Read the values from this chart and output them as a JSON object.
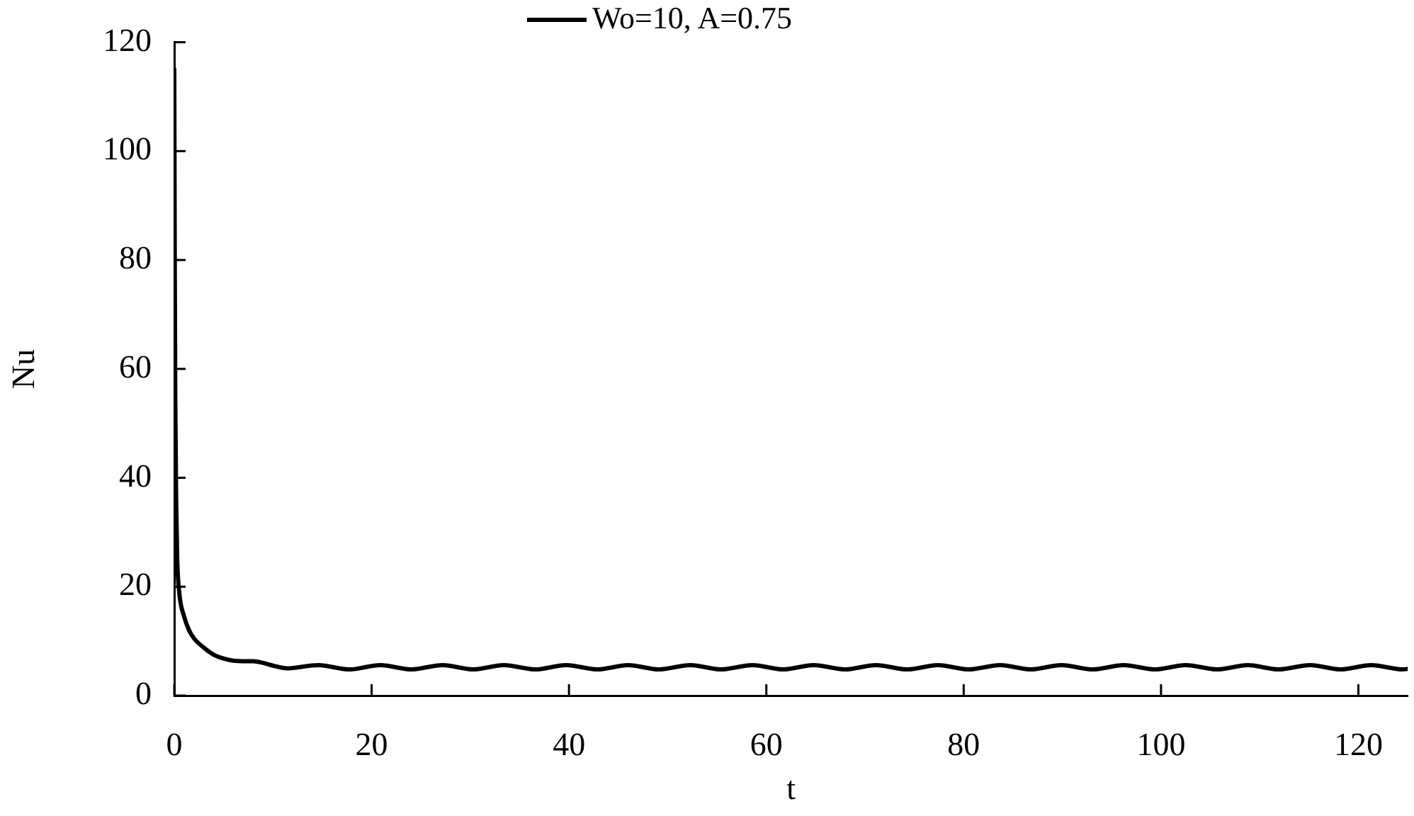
{
  "chart_data": {
    "type": "line",
    "xlabel": "t",
    "ylabel": "Nu",
    "xlim": [
      0,
      125
    ],
    "ylim": [
      0,
      120
    ],
    "xticks": [
      0,
      20,
      40,
      60,
      80,
      100,
      120
    ],
    "yticks": [
      0,
      20,
      40,
      60,
      80,
      100,
      120
    ],
    "grid": false,
    "legend": "top",
    "marker": "none",
    "line_style": "solid",
    "series": [
      {
        "name": "Wo=10, A=0.75",
        "color": "#000000",
        "x": [
          0,
          0.05,
          0.1,
          0.2,
          0.3,
          0.5,
          1,
          1.5,
          2,
          3,
          4,
          5,
          6,
          7,
          8,
          9,
          10,
          11.4,
          14.6,
          17.7,
          20.9,
          24.0,
          27.2,
          30.3,
          33.4,
          36.6,
          39.7,
          42.9,
          46.0,
          49.1,
          52.3,
          55.4,
          58.6,
          61.7,
          64.8,
          68.0,
          71.1,
          74.3,
          77.4,
          80.5,
          83.7,
          86.8,
          89.9,
          93.1,
          96.2,
          99.4,
          102.5,
          105.7,
          108.8,
          111.9,
          115.1,
          118.2,
          121.3,
          124.5,
          125
        ],
        "values": [
          115,
          80,
          55,
          35,
          25,
          19,
          14.5,
          12,
          10.5,
          8.8,
          7.5,
          6.8,
          6.4,
          6.3,
          6.3,
          6.0,
          5.5,
          5.0,
          5.6,
          4.8,
          5.6,
          4.8,
          5.6,
          4.8,
          5.6,
          4.8,
          5.6,
          4.8,
          5.6,
          4.8,
          5.6,
          4.8,
          5.6,
          4.8,
          5.6,
          4.8,
          5.6,
          4.8,
          5.6,
          4.8,
          5.6,
          4.8,
          5.6,
          4.8,
          5.6,
          4.8,
          5.6,
          4.8,
          5.6,
          4.8,
          5.6,
          4.8,
          5.6,
          4.8,
          4.9
        ]
      }
    ]
  }
}
